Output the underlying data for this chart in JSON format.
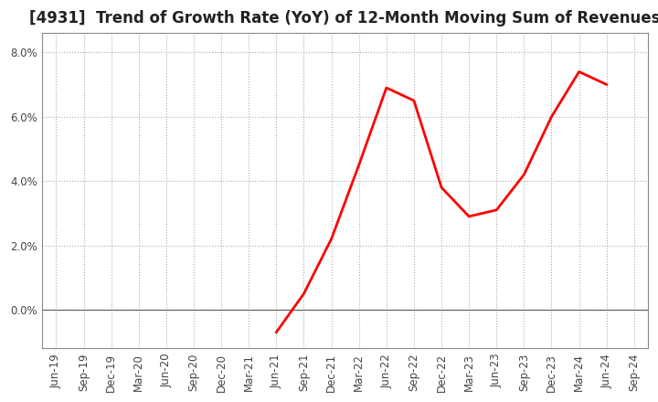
{
  "title": "[4931]  Trend of Growth Rate (YoY) of 12-Month Moving Sum of Revenues",
  "line_color": "#FF0000",
  "background_color": "#FFFFFF",
  "plot_bg_color": "#FFFFFF",
  "grid_color": "#AAAAAA",
  "border_color": "#888888",
  "x_labels": [
    "Jun-19",
    "Sep-19",
    "Dec-19",
    "Mar-20",
    "Jun-20",
    "Sep-20",
    "Dec-20",
    "Mar-21",
    "Jun-21",
    "Sep-21",
    "Dec-21",
    "Mar-22",
    "Jun-22",
    "Sep-22",
    "Dec-22",
    "Mar-23",
    "Jun-23",
    "Sep-23",
    "Dec-23",
    "Mar-24",
    "Jun-24",
    "Sep-24"
  ],
  "y_values": [
    null,
    null,
    null,
    null,
    null,
    null,
    null,
    null,
    -0.007,
    0.005,
    0.022,
    0.045,
    0.069,
    0.065,
    0.038,
    0.029,
    0.031,
    0.042,
    0.06,
    0.074,
    0.07,
    null
  ],
  "ylim": [
    -0.012,
    0.086
  ],
  "yticks": [
    0.0,
    0.02,
    0.04,
    0.06,
    0.08
  ],
  "ytick_labels": [
    "0.0%",
    "2.0%",
    "4.0%",
    "6.0%",
    "8.0%"
  ],
  "title_fontsize": 12,
  "axis_fontsize": 8.5,
  "line_width": 2.0,
  "figsize": [
    7.2,
    4.4
  ],
  "dpi": 100
}
